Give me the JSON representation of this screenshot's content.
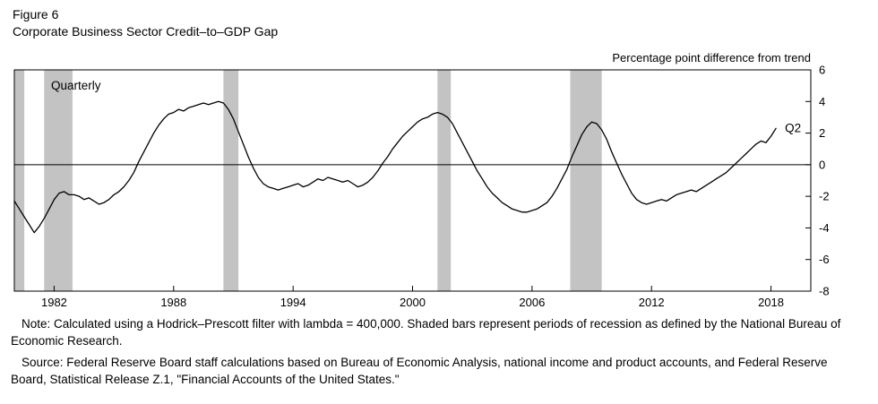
{
  "figure": {
    "label": "Figure 6",
    "title": "Corporate Business Sector Credit–to–GDP Gap",
    "unit_label": "Percentage point difference from trend",
    "frequency_label": "Quarterly",
    "end_label": "Q2"
  },
  "notes": {
    "note": "Note: Calculated using a Hodrick–Prescott filter with lambda = 400,000. Shaded bars represent periods of recession as defined by the National Bureau of Economic Research.",
    "source": "Source: Federal Reserve Board staff calculations based on Bureau of Economic Analysis, national income and product accounts, and Federal Reserve Board, Statistical Release Z.1, \"Financial Accounts of the United States.\""
  },
  "chart_data": {
    "type": "line",
    "title": "Corporate Business Sector Credit–to–GDP Gap",
    "ylabel": "Percentage point difference from trend",
    "frequency": "Quarterly",
    "x_start": 1980.0,
    "x_step": 0.25,
    "x_end": 2018.25,
    "xlim": [
      1980,
      2020
    ],
    "ylim": [
      -8,
      6
    ],
    "xticks": [
      1982,
      1988,
      1994,
      2000,
      2006,
      2012,
      2018
    ],
    "yticks": [
      6,
      4,
      2,
      0,
      -2,
      -4,
      -6,
      -8
    ],
    "grid": false,
    "legend": "none",
    "line_color": "#000000",
    "recession_color": "#c3c3c3",
    "recession_bands": [
      [
        1980.0,
        1980.5
      ],
      [
        1981.5,
        1982.92
      ],
      [
        1990.5,
        1991.25
      ],
      [
        2001.25,
        2001.92
      ],
      [
        2007.92,
        2009.5
      ]
    ],
    "values": [
      -2.3,
      -2.8,
      -3.3,
      -3.8,
      -4.3,
      -3.9,
      -3.4,
      -2.8,
      -2.2,
      -1.8,
      -1.7,
      -1.9,
      -1.9,
      -2.0,
      -2.2,
      -2.1,
      -2.3,
      -2.5,
      -2.4,
      -2.2,
      -1.9,
      -1.7,
      -1.4,
      -1.0,
      -0.5,
      0.2,
      0.8,
      1.4,
      2.0,
      2.5,
      2.9,
      3.2,
      3.3,
      3.5,
      3.4,
      3.6,
      3.7,
      3.8,
      3.9,
      3.8,
      3.9,
      4.0,
      3.9,
      3.5,
      2.9,
      2.1,
      1.3,
      0.5,
      -0.2,
      -0.8,
      -1.2,
      -1.4,
      -1.5,
      -1.6,
      -1.5,
      -1.4,
      -1.3,
      -1.2,
      -1.4,
      -1.3,
      -1.1,
      -0.9,
      -1.0,
      -0.8,
      -0.9,
      -1.0,
      -1.1,
      -1.0,
      -1.2,
      -1.4,
      -1.3,
      -1.1,
      -0.8,
      -0.4,
      0.1,
      0.5,
      1.0,
      1.4,
      1.8,
      2.1,
      2.4,
      2.7,
      2.9,
      3.0,
      3.2,
      3.3,
      3.2,
      3.0,
      2.6,
      2.0,
      1.4,
      0.8,
      0.2,
      -0.4,
      -0.9,
      -1.4,
      -1.8,
      -2.1,
      -2.4,
      -2.6,
      -2.8,
      -2.9,
      -3.0,
      -3.0,
      -2.9,
      -2.8,
      -2.6,
      -2.4,
      -2.0,
      -1.5,
      -0.9,
      -0.3,
      0.5,
      1.2,
      1.9,
      2.4,
      2.7,
      2.6,
      2.2,
      1.6,
      0.8,
      0.1,
      -0.6,
      -1.2,
      -1.8,
      -2.2,
      -2.4,
      -2.5,
      -2.4,
      -2.3,
      -2.2,
      -2.3,
      -2.1,
      -1.9,
      -1.8,
      -1.7,
      -1.6,
      -1.7,
      -1.5,
      -1.3,
      -1.1,
      -0.9,
      -0.7,
      -0.5,
      -0.2,
      0.1,
      0.4,
      0.7,
      1.0,
      1.3,
      1.5,
      1.4,
      1.8,
      2.3
    ]
  }
}
